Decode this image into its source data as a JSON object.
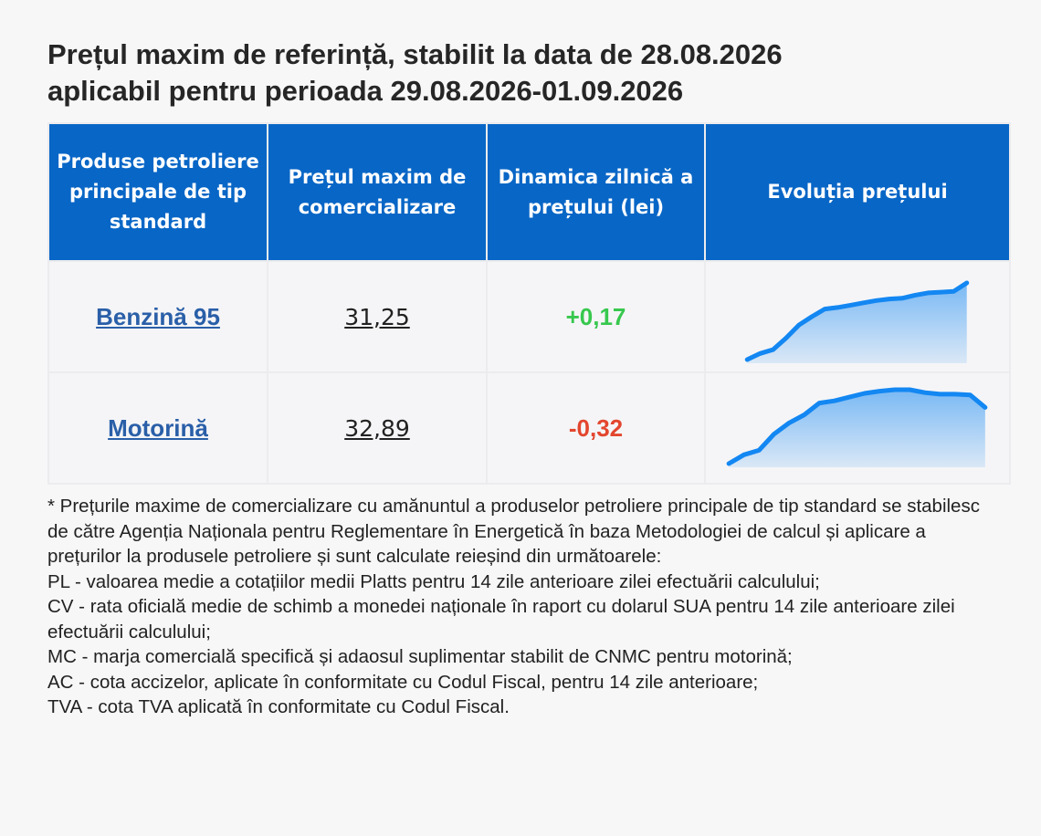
{
  "title": {
    "line1": "Prețul maxim de referință, stabilit la data de 28.08.2026",
    "line2": "aplicabil pentru perioada 29.08.2026-01.09.2026"
  },
  "table": {
    "headers": [
      "Produse petroliere principale de tip standard",
      "Prețul maxim de comercializare",
      "Dinamica zilnică a prețului (lei)",
      "Evoluția prețului"
    ],
    "rows": [
      {
        "product": "Benzină 95",
        "price": "31,25",
        "dynamic": "+0,17",
        "trend": [
          0.0,
          0.08,
          0.13,
          0.28,
          0.45,
          0.56,
          0.66,
          0.68,
          0.71,
          0.74,
          0.77,
          0.79,
          0.8,
          0.84,
          0.87,
          0.88,
          0.89,
          1.0
        ]
      },
      {
        "product": "Motorină",
        "price": "32,89",
        "dynamic": "-0,32",
        "trend": [
          0.0,
          0.12,
          0.18,
          0.4,
          0.55,
          0.66,
          0.82,
          0.85,
          0.9,
          0.95,
          0.98,
          1.0,
          1.0,
          0.96,
          0.94,
          0.94,
          0.93,
          0.76
        ]
      }
    ],
    "colors": {
      "header_bg": "#0866c6",
      "link": "#2a5fa8",
      "up": "#37c84e",
      "down": "#e3462e",
      "spark_line": "#1387f2"
    }
  },
  "footnote": [
    "* Prețurile maxime de comercializare cu amănuntul a produselor petroliere principale de tip standard se stabilesc de către Agenția Naționala pentru Reglementare în Energetică în baza Metodologiei de calcul și aplicare a prețurilor la produsele petroliere și sunt calculate reieșind din următoarele:",
    "PL - valoarea medie a cotațiilor medii Platts pentru 14 zile anterioare zilei efectuării calculului;",
    "CV - rata oficială medie de schimb a monedei naționale în raport cu dolarul SUA pentru 14 zile anterioare zilei efectuării calculului;",
    "MC - marja comercială specifică și adaosul suplimentar stabilit de CNMC pentru motorină;",
    "AC - cota accizelor, aplicate în conformitate cu Codul Fiscal, pentru 14 zile anterioare;",
    "TVA - cota TVA aplicată în conformitate cu Codul Fiscal."
  ]
}
